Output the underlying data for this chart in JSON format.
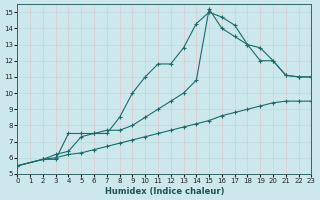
{
  "xlabel": "Humidex (Indice chaleur)",
  "xlim": [
    0,
    23
  ],
  "ylim": [
    5,
    15.5
  ],
  "yticks": [
    5,
    6,
    7,
    8,
    9,
    10,
    11,
    12,
    13,
    14,
    15
  ],
  "xticks": [
    0,
    1,
    2,
    3,
    4,
    5,
    6,
    7,
    8,
    9,
    10,
    11,
    12,
    13,
    14,
    15,
    16,
    17,
    18,
    19,
    20,
    21,
    22,
    23
  ],
  "bg_color": "#cde8ec",
  "line_color": "#1a6b6b",
  "grid_color_v": "#e8c0c0",
  "grid_color_h": "#b8d8dc",
  "line1_x": [
    0,
    2,
    3,
    4,
    5,
    6,
    7,
    8,
    9,
    10,
    11,
    12,
    13,
    14,
    15,
    16,
    17,
    18,
    19,
    20,
    21,
    22,
    23
  ],
  "line1_y": [
    5.5,
    5.9,
    5.9,
    7.5,
    7.5,
    7.5,
    7.5,
    8.5,
    10.0,
    11.0,
    11.8,
    11.8,
    12.8,
    14.3,
    15.0,
    14.7,
    14.2,
    13.0,
    12.8,
    12.0,
    11.1,
    11.0,
    11.0
  ],
  "line2_x": [
    0,
    2,
    3,
    4,
    5,
    6,
    7,
    8,
    9,
    10,
    11,
    12,
    13,
    14,
    15,
    16,
    17,
    18,
    19,
    20,
    21,
    22,
    23
  ],
  "line2_y": [
    5.5,
    5.9,
    6.2,
    6.4,
    7.3,
    7.5,
    7.7,
    7.7,
    8.0,
    8.5,
    9.0,
    9.5,
    10.0,
    10.8,
    15.2,
    14.0,
    13.5,
    13.0,
    12.0,
    12.0,
    11.1,
    11.0,
    11.0
  ],
  "line3_x": [
    0,
    2,
    3,
    4,
    5,
    6,
    7,
    8,
    9,
    10,
    11,
    12,
    13,
    14,
    15,
    16,
    17,
    18,
    19,
    20,
    21,
    22,
    23
  ],
  "line3_y": [
    5.5,
    5.9,
    6.0,
    6.2,
    6.3,
    6.5,
    6.7,
    6.9,
    7.1,
    7.3,
    7.5,
    7.7,
    7.9,
    8.1,
    8.3,
    8.6,
    8.8,
    9.0,
    9.2,
    9.4,
    9.5,
    9.5,
    9.5
  ]
}
